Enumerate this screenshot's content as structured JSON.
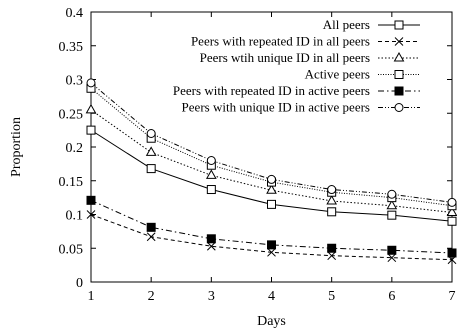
{
  "chart_data": {
    "type": "line",
    "xlabel": "Days",
    "ylabel": "Proportion",
    "xlim": [
      1,
      7
    ],
    "ylim": [
      0,
      0.4
    ],
    "x_ticks": [
      "1",
      "2",
      "3",
      "4",
      "5",
      "6",
      "7"
    ],
    "y_ticks": [
      "0",
      "0.05",
      "0.1",
      "0.15",
      "0.2",
      "0.25",
      "0.3",
      "0.35",
      "0.4"
    ],
    "grid": false,
    "legend_position": "top-right",
    "x": [
      1,
      2,
      3,
      4,
      5,
      6,
      7
    ],
    "series": [
      {
        "name": "All peers",
        "values": [
          0.225,
          0.168,
          0.137,
          0.115,
          0.104,
          0.099,
          0.09
        ],
        "marker": "square-open",
        "dash": "solid"
      },
      {
        "name": "Peers with repeated ID in all peers",
        "values": [
          0.1,
          0.067,
          0.053,
          0.044,
          0.039,
          0.036,
          0.033
        ],
        "marker": "cross",
        "dash": "dashed"
      },
      {
        "name": "Peers wtih unique ID in all peers",
        "values": [
          0.255,
          0.192,
          0.158,
          0.136,
          0.12,
          0.113,
          0.103
        ],
        "marker": "triangle-open",
        "dash": "dotted"
      },
      {
        "name": "Active peers",
        "values": [
          0.287,
          0.213,
          0.173,
          0.148,
          0.133,
          0.125,
          0.113
        ],
        "marker": "square-open",
        "dash": "dotted-fine"
      },
      {
        "name": "Peers with repeated ID in active peers",
        "values": [
          0.121,
          0.081,
          0.064,
          0.055,
          0.05,
          0.047,
          0.043
        ],
        "marker": "square-filled",
        "dash": "dash-dot"
      },
      {
        "name": "Peers with unique ID in active peers",
        "values": [
          0.295,
          0.22,
          0.18,
          0.152,
          0.137,
          0.13,
          0.118
        ],
        "marker": "circle-open",
        "dash": "dash-dot-dot"
      }
    ]
  }
}
